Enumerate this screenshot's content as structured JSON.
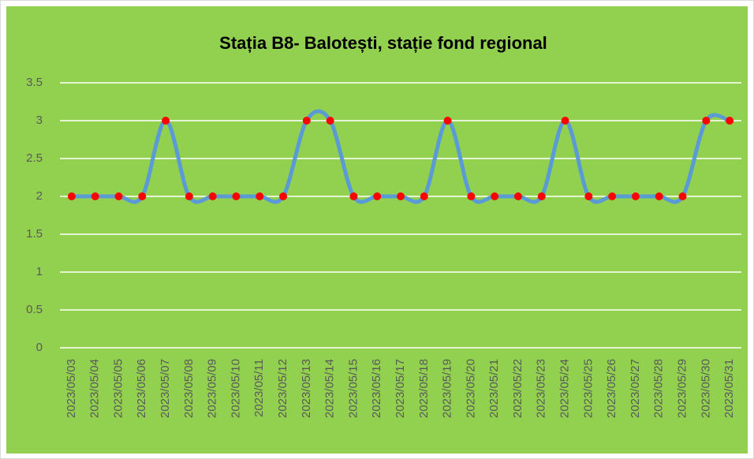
{
  "chart_data": {
    "type": "line",
    "title": "Stația B8-  Balotești, stație fond regional",
    "categories": [
      "2023/05/03",
      "2023/05/04",
      "2023/05/05",
      "2023/05/06",
      "2023/05/07",
      "2023/05/08",
      "2023/05/09",
      "2023/05/10",
      "2023/05/11",
      "2023/05/12",
      "2023/05/13",
      "2023/05/14",
      "2023/05/15",
      "2023/05/16",
      "2023/05/17",
      "2023/05/18",
      "2023/05/19",
      "2023/05/20",
      "2023/05/21",
      "2023/05/22",
      "2023/05/23",
      "2023/05/24",
      "2023/05/25",
      "2023/05/26",
      "2023/05/27",
      "2023/05/28",
      "2023/05/29",
      "2023/05/30",
      "2023/05/31"
    ],
    "series": [
      {
        "color": "#5b9bd5",
        "marker_color": "#ff0000",
        "values": [
          2,
          2,
          2,
          2,
          3,
          2,
          2,
          2,
          2,
          2,
          3,
          3,
          2,
          2,
          2,
          2,
          3,
          2,
          2,
          2,
          2,
          3,
          2,
          2,
          2,
          2,
          2,
          3,
          3
        ]
      }
    ],
    "ylim": [
      0,
      3.5
    ],
    "yticks": [
      0,
      0.5,
      1,
      1.5,
      2,
      2.5,
      3,
      3.5
    ],
    "grid": true,
    "smooth": true,
    "background": "#92d050"
  }
}
